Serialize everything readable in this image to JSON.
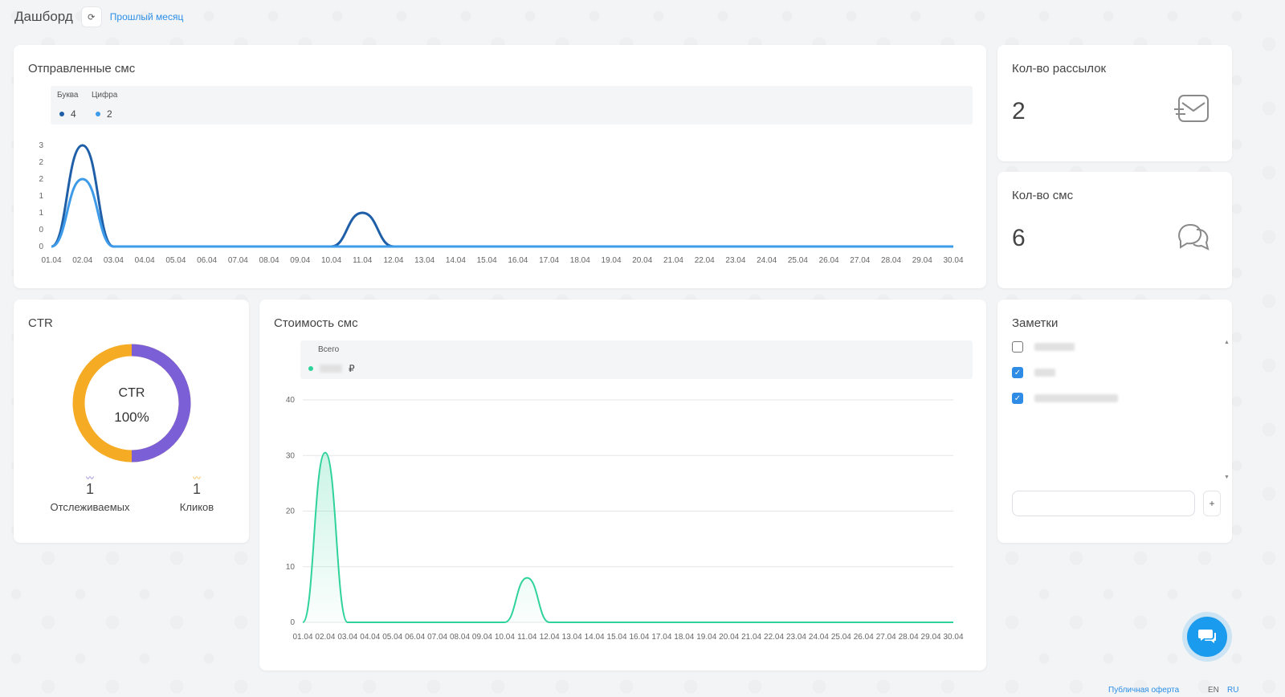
{
  "header": {
    "title": "Дашборд",
    "refresh_icon": "refresh-icon",
    "period": "Прошлый месяц"
  },
  "sent_sms": {
    "title": "Отправленные смс",
    "legend": [
      {
        "name": "Буква",
        "value": "4",
        "color": "#1f5fa8"
      },
      {
        "name": "Цифра",
        "value": "2",
        "color": "#3d9be9"
      }
    ]
  },
  "mailings": {
    "title": "Кол-во рассылок",
    "value": "2",
    "icon": "envelope-icon"
  },
  "sms_count": {
    "title": "Кол-во смс",
    "value": "6",
    "icon": "chat-bubbles-icon"
  },
  "ctr": {
    "title": "CTR",
    "center_label": "CTR",
    "center_value": "100%",
    "tracked": {
      "value": "1",
      "label": "Отслеживаемых",
      "color": "#7b5fd6"
    },
    "clicks": {
      "value": "1",
      "label": "Кликов",
      "color": "#f5a623"
    }
  },
  "cost": {
    "title": "Стоимость смс",
    "legend_title": "Всего",
    "currency": "₽",
    "color": "#2fd39a"
  },
  "notes": {
    "title": "Заметки",
    "items": [
      {
        "checked": false
      },
      {
        "checked": true
      },
      {
        "checked": true
      }
    ],
    "add_label": "+"
  },
  "footer": {
    "offer": "Публичная оферта",
    "lang_en": "EN",
    "lang_ru": "RU"
  },
  "chart_data": [
    {
      "type": "line",
      "title": "Отправленные смс",
      "categories": [
        "01.04",
        "02.04",
        "03.04",
        "04.04",
        "05.04",
        "06.04",
        "07.04",
        "08.04",
        "09.04",
        "10.04",
        "11.04",
        "12.04",
        "13.04",
        "14.04",
        "15.04",
        "16.04",
        "17.04",
        "18.04",
        "19.04",
        "20.04",
        "21.04",
        "22.04",
        "23.04",
        "24.04",
        "25.04",
        "26.04",
        "27.04",
        "28.04",
        "29.04",
        "30.04"
      ],
      "y_ticks": [
        "0",
        "0",
        "1",
        "1",
        "2",
        "2",
        "3"
      ],
      "ylim": [
        0,
        3
      ],
      "series": [
        {
          "name": "Буква",
          "values": [
            0,
            3,
            0,
            0,
            0,
            0,
            0,
            0,
            0,
            0,
            1,
            0,
            0,
            0,
            0,
            0,
            0,
            0,
            0,
            0,
            0,
            0,
            0,
            0,
            0,
            0,
            0,
            0,
            0,
            0
          ]
        },
        {
          "name": "Цифра",
          "values": [
            0,
            2,
            0,
            0,
            0,
            0,
            0,
            0,
            0,
            0,
            0,
            0,
            0,
            0,
            0,
            0,
            0,
            0,
            0,
            0,
            0,
            0,
            0,
            0,
            0,
            0,
            0,
            0,
            0,
            0
          ]
        }
      ],
      "grid": false,
      "legend": "top-left"
    },
    {
      "type": "area",
      "title": "Стоимость смс",
      "categories": [
        "01.04",
        "02.04",
        "03.04",
        "04.04",
        "05.04",
        "06.04",
        "07.04",
        "08.04",
        "09.04",
        "10.04",
        "11.04",
        "12.04",
        "13.04",
        "14.04",
        "15.04",
        "16.04",
        "17.04",
        "18.04",
        "19.04",
        "20.04",
        "21.04",
        "22.04",
        "23.04",
        "24.04",
        "25.04",
        "26.04",
        "27.04",
        "28.04",
        "29.04",
        "30.04"
      ],
      "y_ticks": [
        "0",
        "10",
        "20",
        "30",
        "40"
      ],
      "ylim": [
        0,
        40
      ],
      "series": [
        {
          "name": "Всего",
          "values": [
            0,
            30.5,
            0,
            0,
            0,
            0,
            0,
            0,
            0,
            0,
            8,
            0,
            0,
            0,
            0,
            0,
            0,
            0,
            0,
            0,
            0,
            0,
            0,
            0,
            0,
            0,
            0,
            0,
            0,
            0
          ]
        }
      ],
      "grid": true,
      "legend": "top-left"
    }
  ]
}
